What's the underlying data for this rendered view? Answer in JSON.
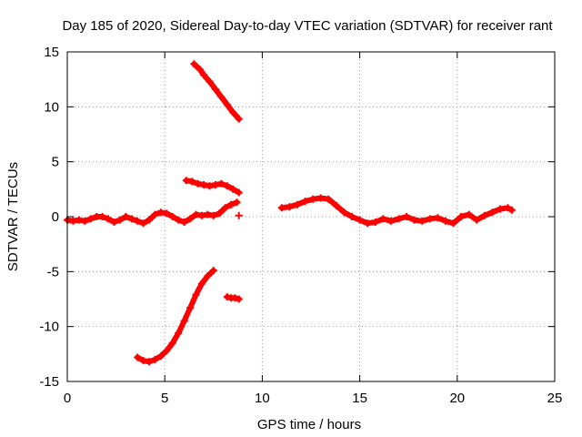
{
  "chart_data": {
    "type": "scatter",
    "title": "Day 185 of 2020, Sidereal Day-to-day VTEC variation (SDTVAR) for receiver rant",
    "xlabel": "GPS time / hours",
    "ylabel": "SDTVAR / TECUs",
    "xlim": [
      0,
      25
    ],
    "ylim": [
      -15,
      15
    ],
    "xticks": [
      0,
      5,
      10,
      15,
      20,
      25
    ],
    "yticks": [
      -15,
      -10,
      -5,
      0,
      5,
      10,
      15
    ],
    "xtick_labels": [
      "0",
      "5",
      "10",
      "15",
      "20",
      "25"
    ],
    "ytick_labels": [
      "-15",
      "-10",
      "-5",
      "0",
      "5",
      "10",
      "15"
    ],
    "grid": true,
    "marker": "+",
    "color": "#ff0000",
    "series": [
      {
        "name": "main trace early",
        "x": [
          0.0,
          0.3,
          0.6,
          0.9,
          1.2,
          1.5,
          1.8,
          2.1,
          2.4,
          2.7,
          3.0,
          3.3,
          3.6,
          3.9,
          4.2,
          4.5,
          4.8,
          5.1,
          5.4,
          5.7,
          6.0,
          6.3,
          6.6,
          6.9,
          7.2,
          7.5,
          7.8,
          8.1,
          8.4,
          8.7
        ],
        "y": [
          -0.3,
          -0.4,
          -0.3,
          -0.4,
          -0.2,
          0.0,
          0.0,
          -0.2,
          -0.5,
          -0.3,
          0.0,
          -0.2,
          -0.4,
          -0.6,
          -0.3,
          0.2,
          0.4,
          0.3,
          0.0,
          -0.3,
          -0.5,
          -0.2,
          0.2,
          0.1,
          0.2,
          0.1,
          0.3,
          0.8,
          1.1,
          1.3
        ]
      },
      {
        "name": "upper branch 1",
        "x": [
          6.5,
          6.8,
          7.0,
          7.3,
          7.6,
          7.9,
          8.2,
          8.5,
          8.8
        ],
        "y": [
          13.9,
          13.4,
          12.9,
          12.3,
          11.6,
          10.9,
          10.2,
          9.5,
          8.9
        ]
      },
      {
        "name": "upper branch 2",
        "x": [
          6.1,
          6.4,
          6.7,
          7.0,
          7.3,
          7.6,
          7.9,
          8.2,
          8.5,
          8.8
        ],
        "y": [
          3.3,
          3.2,
          3.0,
          2.9,
          2.8,
          2.9,
          3.0,
          2.8,
          2.5,
          2.2
        ]
      },
      {
        "name": "lower branch",
        "x": [
          3.6,
          3.9,
          4.2,
          4.5,
          4.8,
          5.1,
          5.4,
          5.7,
          6.0,
          6.3,
          6.6,
          6.9,
          7.2,
          7.5
        ],
        "y": [
          -12.8,
          -13.1,
          -13.2,
          -13.0,
          -12.7,
          -12.2,
          -11.5,
          -10.6,
          -9.5,
          -8.3,
          -7.1,
          -6.1,
          -5.4,
          -4.9
        ]
      },
      {
        "name": "lower small cluster",
        "x": [
          8.2,
          8.4,
          8.6,
          8.8
        ],
        "y": [
          -7.3,
          -7.4,
          -7.4,
          -7.5
        ]
      },
      {
        "name": "isolated point",
        "x": [
          8.8
        ],
        "y": [
          0.1
        ]
      },
      {
        "name": "main trace late",
        "x": [
          11.0,
          11.4,
          11.8,
          12.2,
          12.6,
          13.0,
          13.4,
          13.8,
          14.2,
          14.6,
          15.0,
          15.4,
          15.8,
          16.2,
          16.6,
          17.0,
          17.4,
          17.8,
          18.2,
          18.6,
          19.0,
          19.4,
          19.8,
          20.2,
          20.6,
          21.0,
          21.4,
          21.8,
          22.2,
          22.6,
          22.8
        ],
        "y": [
          0.8,
          0.9,
          1.1,
          1.4,
          1.6,
          1.7,
          1.6,
          1.0,
          0.4,
          0.0,
          -0.3,
          -0.6,
          -0.5,
          -0.2,
          -0.4,
          -0.2,
          0.0,
          -0.3,
          -0.4,
          -0.2,
          -0.1,
          -0.4,
          -0.6,
          0.0,
          0.2,
          -0.3,
          0.1,
          0.4,
          0.7,
          0.8,
          0.6
        ]
      }
    ]
  }
}
